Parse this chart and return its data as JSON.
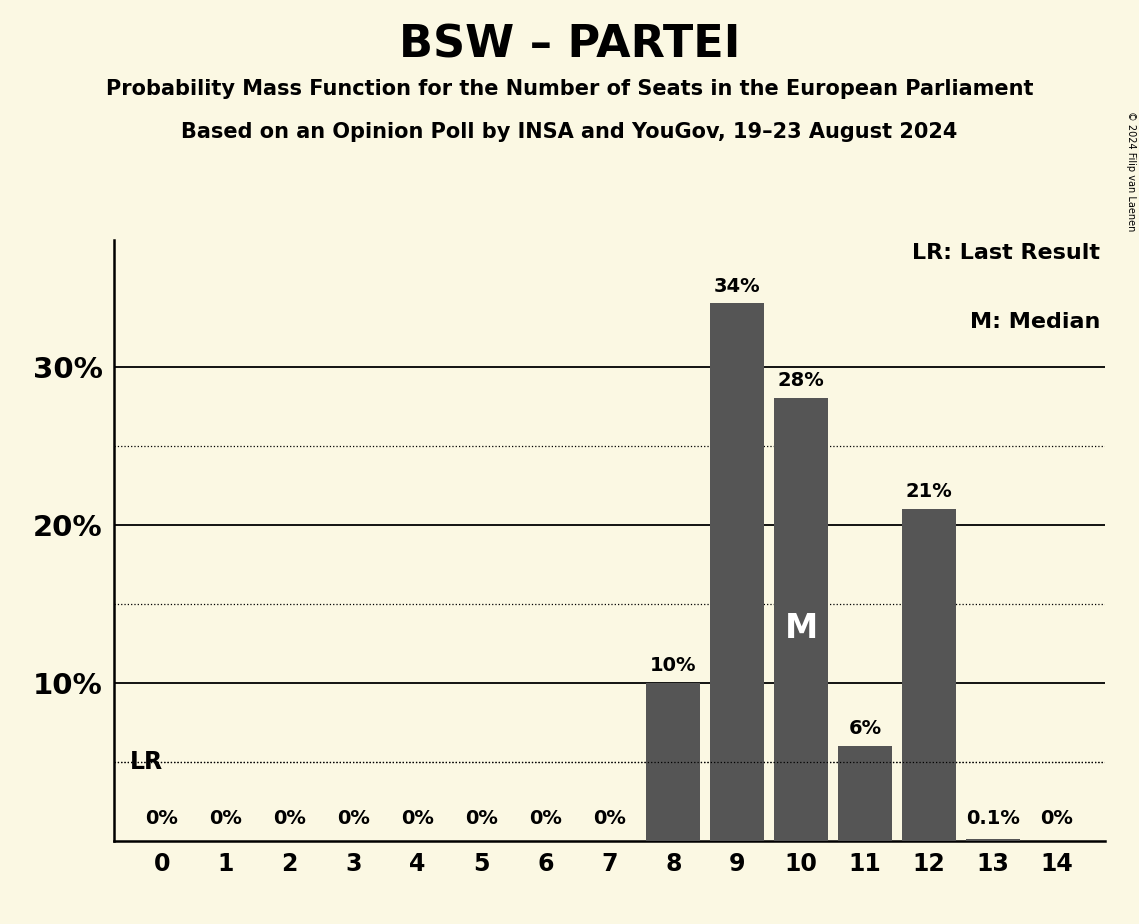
{
  "title": "BSW – PARTEI",
  "subtitle1": "Probability Mass Function for the Number of Seats in the European Parliament",
  "subtitle2": "Based on an Opinion Poll by INSA and YouGov, 19–23 August 2024",
  "copyright": "© 2024 Filip van Laenen",
  "x_values": [
    0,
    1,
    2,
    3,
    4,
    5,
    6,
    7,
    8,
    9,
    10,
    11,
    12,
    13,
    14
  ],
  "y_values": [
    0,
    0,
    0,
    0,
    0,
    0,
    0,
    0,
    10,
    34,
    28,
    6,
    21,
    0.1,
    0
  ],
  "bar_color": "#555555",
  "background_color": "#fbf8e3",
  "LR_value": 5.0,
  "median_seat": 10,
  "ylim_max": 38,
  "yticks": [
    10,
    20,
    30
  ],
  "dotted_yticks": [
    5,
    15,
    25
  ],
  "legend_LR": "LR: Last Result",
  "legend_M": "M: Median",
  "bar_labels": {
    "0": "0%",
    "1": "0%",
    "2": "0%",
    "3": "0%",
    "4": "0%",
    "5": "0%",
    "6": "0%",
    "7": "0%",
    "8": "10%",
    "9": "34%",
    "10": "28%",
    "11": "6%",
    "12": "21%",
    "13": "0.1%",
    "14": "0%"
  }
}
